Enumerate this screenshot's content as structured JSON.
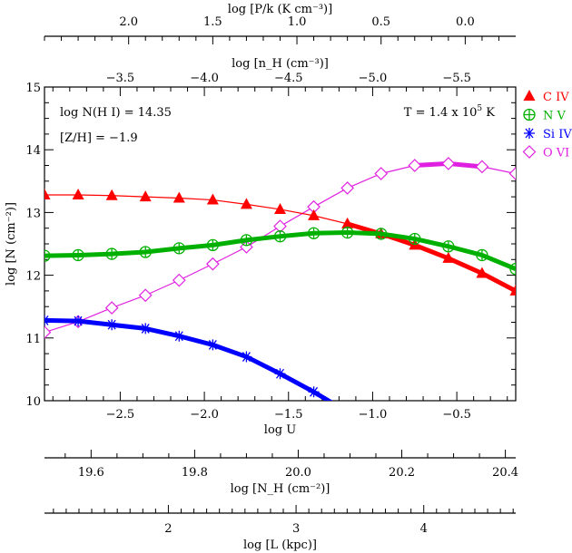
{
  "chart_data": {
    "type": "line",
    "xlabel": "log U",
    "ylabel": "log [N (cm⁻²)]",
    "xlim": [
      -2.95,
      -0.15
    ],
    "ylim": [
      10,
      15
    ],
    "x_ticks": [
      "−2.5",
      "−2.0",
      "−1.5",
      "−1.0",
      "−0.5"
    ],
    "y_ticks": [
      "10",
      "11",
      "12",
      "13",
      "14",
      "15"
    ],
    "x": [
      -2.95,
      -2.75,
      -2.55,
      -2.35,
      -2.15,
      -1.95,
      -1.75,
      -1.55,
      -1.35,
      -1.15,
      -0.95,
      -0.75,
      -0.55,
      -0.35,
      -0.15
    ],
    "series": [
      {
        "name": "C IV",
        "color": "#ff0000",
        "marker": "filled-triangle",
        "values": [
          13.28,
          13.28,
          13.27,
          13.25,
          13.23,
          13.2,
          13.13,
          13.05,
          12.95,
          12.82,
          12.66,
          12.48,
          12.27,
          12.03,
          11.75
        ]
      },
      {
        "name": "N V",
        "color": "#00b000",
        "marker": "circle-plus",
        "values": [
          12.31,
          12.32,
          12.34,
          12.37,
          12.43,
          12.48,
          12.56,
          12.62,
          12.67,
          12.68,
          12.66,
          12.58,
          12.46,
          12.32,
          12.1
        ]
      },
      {
        "name": "Si IV",
        "color": "#0000ff",
        "marker": "asterisk",
        "values": [
          11.28,
          11.27,
          11.21,
          11.15,
          11.03,
          10.89,
          10.7,
          10.43,
          10.14,
          9.82,
          null,
          null,
          null,
          null,
          null
        ]
      },
      {
        "name": "O VI",
        "color": "#e020e0",
        "marker": "open-diamond",
        "values": [
          11.09,
          11.26,
          11.48,
          11.68,
          11.92,
          12.18,
          12.45,
          12.78,
          13.09,
          13.39,
          13.62,
          13.75,
          13.78,
          13.73,
          13.62
        ]
      }
    ],
    "annotations": {
      "nhi": "log N(H I) = 14.35",
      "metallicity": "[Z/H] = −1.9",
      "temp_prefix": "T = 1.4 x 10",
      "temp_exp": "5",
      "temp_suffix": " K"
    },
    "legend_placement": "right-outside-top",
    "secondary_axes": [
      {
        "position": "top-outer",
        "label": "log [P/k (K cm⁻³)]",
        "lim": [
          2.5,
          -0.3
        ],
        "ticks": [
          2.0,
          1.5,
          1.0,
          0.5,
          0.0
        ],
        "tick_labels": [
          "2.0",
          "1.5",
          "1.0",
          "0.5",
          "0.0"
        ],
        "minor": 0.1
      },
      {
        "position": "top-inner",
        "label": "log [n_H (cm⁻³)]",
        "lim": [
          -3.05,
          -5.85
        ],
        "ticks": [
          -3.5,
          -4.0,
          -4.5,
          -5.0,
          -5.5
        ],
        "tick_labels": [
          "−3.5",
          "−4.0",
          "−4.5",
          "−5.0",
          "−5.5"
        ],
        "minor": 0.1
      },
      {
        "position": "bottom-1",
        "label": "log [N_H (cm⁻²)]",
        "lim": [
          19.51,
          20.42
        ],
        "ticks": [
          19.6,
          19.8,
          20.0,
          20.2,
          20.4
        ],
        "tick_labels": [
          "19.6",
          "19.8",
          "20.0",
          "20.2",
          "20.4"
        ],
        "minor": 0.05
      },
      {
        "position": "bottom-2",
        "label": "log [L (kpc)]",
        "lim": [
          1.03,
          4.72
        ],
        "ticks": [
          2,
          3,
          4
        ],
        "tick_labels": [
          "2",
          "3",
          "4"
        ],
        "minor": 0.1
      }
    ]
  }
}
